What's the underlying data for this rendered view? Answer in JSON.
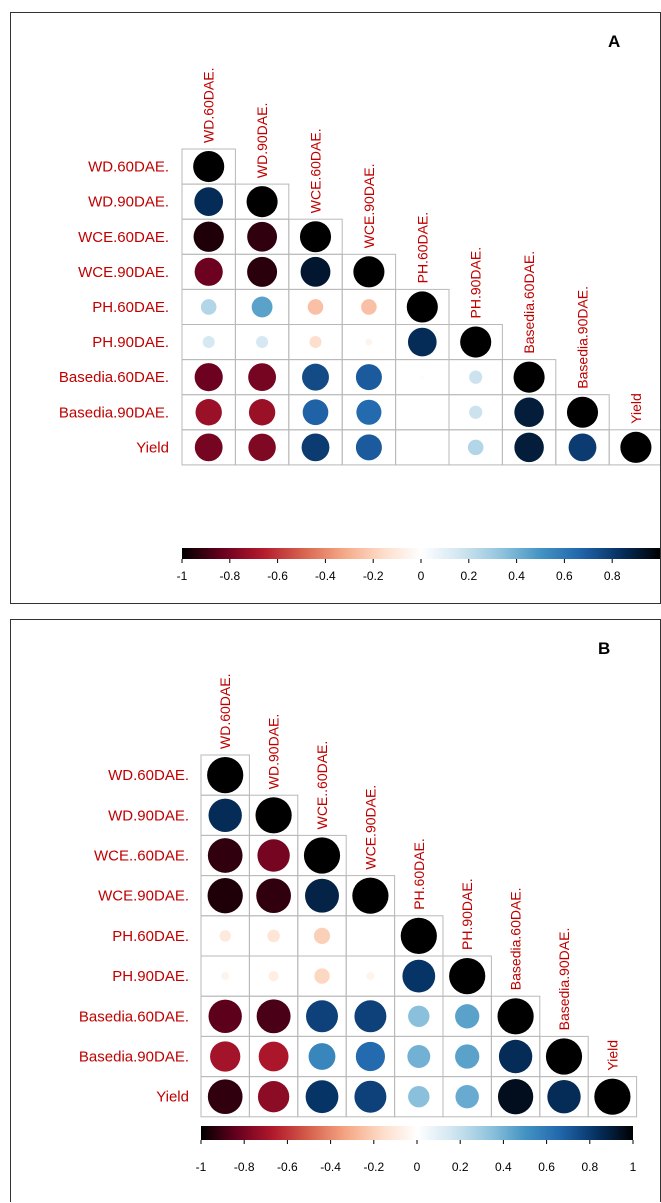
{
  "chart_data": [
    {
      "type": "heatmap",
      "subtype": "correlation-lower-triangle-circles",
      "panel_label": "A",
      "variables": [
        "WD.60DAE.",
        "WD.90DAE.",
        "WCE.60DAE.",
        "WCE.90DAE.",
        "PH.60DAE.",
        "PH.90DAE.",
        "Basedia.60DAE.",
        "Basedia.90DAE.",
        "Yield"
      ],
      "matrix": [
        [
          1.0
        ],
        [
          0.85,
          1.0
        ],
        [
          -0.95,
          -0.92,
          1.0
        ],
        [
          -0.82,
          -0.93,
          0.92,
          1.0
        ],
        [
          0.25,
          0.45,
          -0.25,
          -0.25,
          1.0
        ],
        [
          0.15,
          0.15,
          -0.15,
          -0.05,
          0.85,
          1.0
        ],
        [
          -0.82,
          -0.8,
          0.75,
          0.7,
          -0.02,
          0.18,
          1.0
        ],
        [
          -0.72,
          -0.72,
          0.68,
          0.65,
          0.0,
          0.18,
          0.9,
          1.0
        ],
        [
          -0.8,
          -0.78,
          0.8,
          0.7,
          0.0,
          0.25,
          0.9,
          0.8,
          1.0
        ]
      ],
      "colorbar_ticks": [
        "-1",
        "-0.8",
        "-0.6",
        "-0.4",
        "-0.2",
        "0",
        "0.2",
        "0.4",
        "0.6",
        "0.8"
      ],
      "colorbar_range": [
        -1,
        1
      ],
      "colors": {
        "negative": "#67001f",
        "zero": "#ffffff",
        "positive": "#053061"
      }
    },
    {
      "type": "heatmap",
      "subtype": "correlation-lower-triangle-circles",
      "panel_label": "B",
      "variables": [
        "WD.60DAE.",
        "WD.90DAE.",
        "WCE..60DAE.",
        "WCE.90DAE.",
        "PH.60DAE.",
        "PH.90DAE.",
        "Basedia.60DAE.",
        "Basedia.90DAE.",
        "Yield"
      ],
      "matrix": [
        [
          1.0
        ],
        [
          0.85,
          1.0
        ],
        [
          -0.92,
          -0.8,
          1.0
        ],
        [
          -0.95,
          -0.92,
          0.88,
          1.0
        ],
        [
          -0.1,
          -0.12,
          -0.2,
          0.0,
          1.0
        ],
        [
          -0.05,
          -0.08,
          -0.18,
          -0.05,
          0.82,
          1.0
        ],
        [
          -0.85,
          -0.88,
          0.78,
          0.78,
          0.35,
          0.45,
          1.0
        ],
        [
          -0.7,
          -0.68,
          0.55,
          0.65,
          0.4,
          0.45,
          0.85,
          1.0
        ],
        [
          -0.92,
          -0.75,
          0.82,
          0.78,
          0.35,
          0.42,
          0.95,
          0.85,
          1.0
        ]
      ],
      "colorbar_ticks": [
        "-1",
        "-0.8",
        "-0.6",
        "-0.4",
        "-0.2",
        "0",
        "0.2",
        "0.4",
        "0.6",
        "0.8",
        "1"
      ],
      "colorbar_range": [
        -1,
        1
      ],
      "colors": {
        "negative": "#67001f",
        "zero": "#ffffff",
        "positive": "#053061"
      }
    }
  ]
}
